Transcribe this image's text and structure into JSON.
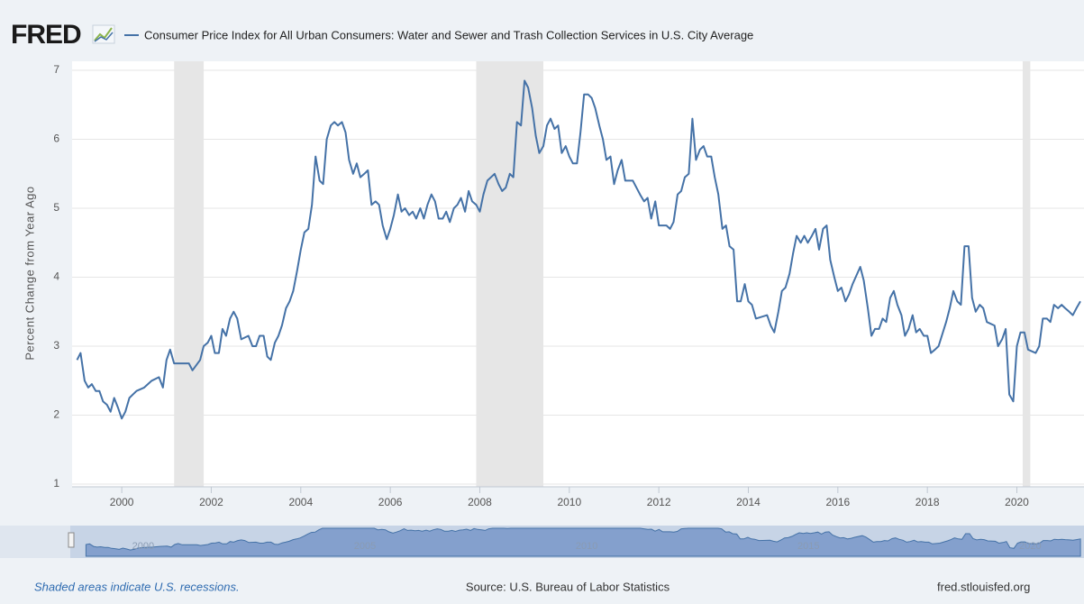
{
  "chart_data": {
    "type": "line",
    "logo": "FRED",
    "y_label": "Percent Change from Year Ago",
    "note": "Shaded areas indicate U.S. recessions.",
    "source": "Source: U.S. Bureau of Labor Statistics",
    "site": "fred.stlouisfed.org",
    "xlim": [
      1998.89,
      2021.5
    ],
    "ylim": [
      1,
      7
    ],
    "xticks": [
      2000,
      2002,
      2004,
      2006,
      2008,
      2010,
      2012,
      2014,
      2016,
      2018,
      2020
    ],
    "yticks": [
      1,
      2,
      3,
      4,
      5,
      6,
      7
    ],
    "grid": true,
    "navigator_ticks": [
      2000,
      2005,
      2010,
      2015,
      2020
    ],
    "recessions": [
      [
        2001.17,
        2001.83
      ],
      [
        2007.92,
        2009.42
      ],
      [
        2020.13,
        2020.3
      ]
    ],
    "recession_color": "#e6e6e6",
    "x": [
      1999.0,
      1999.08,
      1999.17,
      1999.25,
      1999.33,
      1999.42,
      1999.5,
      1999.58,
      1999.67,
      1999.75,
      1999.83,
      1999.92,
      2000.0,
      2000.08,
      2000.17,
      2000.33,
      2000.5,
      2000.67,
      2000.83,
      2000.92,
      2001.0,
      2001.08,
      2001.17,
      2001.5,
      2001.58,
      2001.75,
      2001.83,
      2001.92,
      2002.0,
      2002.08,
      2002.17,
      2002.25,
      2002.33,
      2002.42,
      2002.5,
      2002.58,
      2002.67,
      2002.83,
      2002.92,
      2003.0,
      2003.08,
      2003.17,
      2003.25,
      2003.33,
      2003.42,
      2003.5,
      2003.58,
      2003.67,
      2003.75,
      2003.83,
      2003.92,
      2004.0,
      2004.08,
      2004.17,
      2004.25,
      2004.33,
      2004.42,
      2004.5,
      2004.58,
      2004.67,
      2004.75,
      2004.83,
      2004.92,
      2005.0,
      2005.08,
      2005.17,
      2005.25,
      2005.33,
      2005.42,
      2005.5,
      2005.58,
      2005.67,
      2005.75,
      2005.83,
      2005.92,
      2006.0,
      2006.08,
      2006.17,
      2006.25,
      2006.33,
      2006.42,
      2006.5,
      2006.58,
      2006.67,
      2006.75,
      2006.83,
      2006.92,
      2007.0,
      2007.08,
      2007.17,
      2007.25,
      2007.33,
      2007.42,
      2007.5,
      2007.58,
      2007.67,
      2007.75,
      2007.83,
      2007.92,
      2008.0,
      2008.08,
      2008.17,
      2008.33,
      2008.42,
      2008.5,
      2008.58,
      2008.67,
      2008.75,
      2008.83,
      2008.92,
      2009.0,
      2009.08,
      2009.17,
      2009.25,
      2009.33,
      2009.42,
      2009.5,
      2009.58,
      2009.67,
      2009.75,
      2009.83,
      2009.92,
      2010.0,
      2010.08,
      2010.17,
      2010.25,
      2010.33,
      2010.42,
      2010.5,
      2010.58,
      2010.67,
      2010.75,
      2010.83,
      2010.92,
      2011.0,
      2011.08,
      2011.17,
      2011.25,
      2011.42,
      2011.5,
      2011.58,
      2011.67,
      2011.75,
      2011.83,
      2011.92,
      2012.0,
      2012.17,
      2012.25,
      2012.33,
      2012.42,
      2012.5,
      2012.58,
      2012.67,
      2012.75,
      2012.83,
      2012.92,
      2013.0,
      2013.08,
      2013.17,
      2013.25,
      2013.33,
      2013.42,
      2013.5,
      2013.58,
      2013.67,
      2013.75,
      2013.83,
      2013.92,
      2014.0,
      2014.08,
      2014.17,
      2014.42,
      2014.5,
      2014.58,
      2014.67,
      2014.75,
      2014.83,
      2014.92,
      2015.0,
      2015.08,
      2015.17,
      2015.25,
      2015.33,
      2015.42,
      2015.5,
      2015.58,
      2015.67,
      2015.75,
      2015.83,
      2015.92,
      2016.0,
      2016.08,
      2016.17,
      2016.25,
      2016.33,
      2016.5,
      2016.58,
      2016.67,
      2016.75,
      2016.83,
      2016.92,
      2017.0,
      2017.08,
      2017.17,
      2017.25,
      2017.33,
      2017.42,
      2017.5,
      2017.58,
      2017.67,
      2017.75,
      2017.83,
      2017.92,
      2018.0,
      2018.08,
      2018.17,
      2018.25,
      2018.42,
      2018.5,
      2018.58,
      2018.67,
      2018.75,
      2018.83,
      2018.92,
      2019.0,
      2019.08,
      2019.17,
      2019.25,
      2019.33,
      2019.5,
      2019.58,
      2019.67,
      2019.75,
      2019.83,
      2019.92,
      2020.0,
      2020.08,
      2020.17,
      2020.25,
      2020.42,
      2020.5,
      2020.58,
      2020.67,
      2020.75,
      2020.83,
      2020.92,
      2021.0,
      2021.08,
      2021.17,
      2021.25,
      2021.33,
      2021.42
    ],
    "series": [
      {
        "name": "Consumer Price Index for All Urban Consumers: Water and Sewer and Trash Collection Services in U.S. City Average",
        "color": "#4572a7",
        "values": [
          2.8,
          2.9,
          2.5,
          2.4,
          2.45,
          2.35,
          2.35,
          2.2,
          2.15,
          2.05,
          2.25,
          2.1,
          1.95,
          2.05,
          2.25,
          2.35,
          2.4,
          2.5,
          2.55,
          2.4,
          2.8,
          2.95,
          2.75,
          2.75,
          2.65,
          2.8,
          3.0,
          3.05,
          3.15,
          2.9,
          2.9,
          3.25,
          3.15,
          3.4,
          3.5,
          3.4,
          3.1,
          3.15,
          3.0,
          3.0,
          3.15,
          3.15,
          2.85,
          2.8,
          3.05,
          3.15,
          3.3,
          3.55,
          3.65,
          3.8,
          4.1,
          4.4,
          4.65,
          4.7,
          5.05,
          5.75,
          5.4,
          5.35,
          6.0,
          6.2,
          6.25,
          6.2,
          6.25,
          6.1,
          5.7,
          5.5,
          5.65,
          5.45,
          5.5,
          5.55,
          5.05,
          5.1,
          5.05,
          4.75,
          4.55,
          4.7,
          4.9,
          5.2,
          4.95,
          5.0,
          4.9,
          4.95,
          4.85,
          5.0,
          4.85,
          5.05,
          5.2,
          5.1,
          4.85,
          4.85,
          4.95,
          4.8,
          5.0,
          5.05,
          5.15,
          4.95,
          5.25,
          5.1,
          5.05,
          4.95,
          5.2,
          5.4,
          5.5,
          5.35,
          5.25,
          5.3,
          5.5,
          5.45,
          6.25,
          6.2,
          6.85,
          6.75,
          6.45,
          6.05,
          5.8,
          5.9,
          6.2,
          6.3,
          6.15,
          6.2,
          5.8,
          5.9,
          5.75,
          5.65,
          5.65,
          6.1,
          6.65,
          6.65,
          6.6,
          6.45,
          6.2,
          6.0,
          5.7,
          5.75,
          5.35,
          5.55,
          5.7,
          5.4,
          5.4,
          5.3,
          5.2,
          5.1,
          5.15,
          4.85,
          5.1,
          4.75,
          4.75,
          4.7,
          4.8,
          5.2,
          5.25,
          5.45,
          5.5,
          6.3,
          5.7,
          5.85,
          5.9,
          5.75,
          5.75,
          5.45,
          5.2,
          4.7,
          4.75,
          4.45,
          4.4,
          3.65,
          3.65,
          3.9,
          3.65,
          3.6,
          3.4,
          3.45,
          3.3,
          3.2,
          3.5,
          3.8,
          3.85,
          4.05,
          4.35,
          4.6,
          4.5,
          4.6,
          4.5,
          4.6,
          4.7,
          4.4,
          4.7,
          4.75,
          4.25,
          4.0,
          3.8,
          3.85,
          3.65,
          3.75,
          3.9,
          4.15,
          3.95,
          3.55,
          3.15,
          3.25,
          3.25,
          3.4,
          3.35,
          3.7,
          3.8,
          3.6,
          3.45,
          3.15,
          3.25,
          3.45,
          3.2,
          3.25,
          3.15,
          3.15,
          2.9,
          2.95,
          3.0,
          3.35,
          3.55,
          3.8,
          3.65,
          3.6,
          4.45,
          4.45,
          3.7,
          3.5,
          3.6,
          3.55,
          3.35,
          3.3,
          3.0,
          3.1,
          3.25,
          2.3,
          2.2,
          3.0,
          3.2,
          3.2,
          2.95,
          2.9,
          3.0,
          3.4,
          3.4,
          3.35,
          3.6,
          3.55,
          3.6,
          3.55,
          3.5,
          3.45,
          3.55,
          3.65
        ]
      }
    ]
  }
}
